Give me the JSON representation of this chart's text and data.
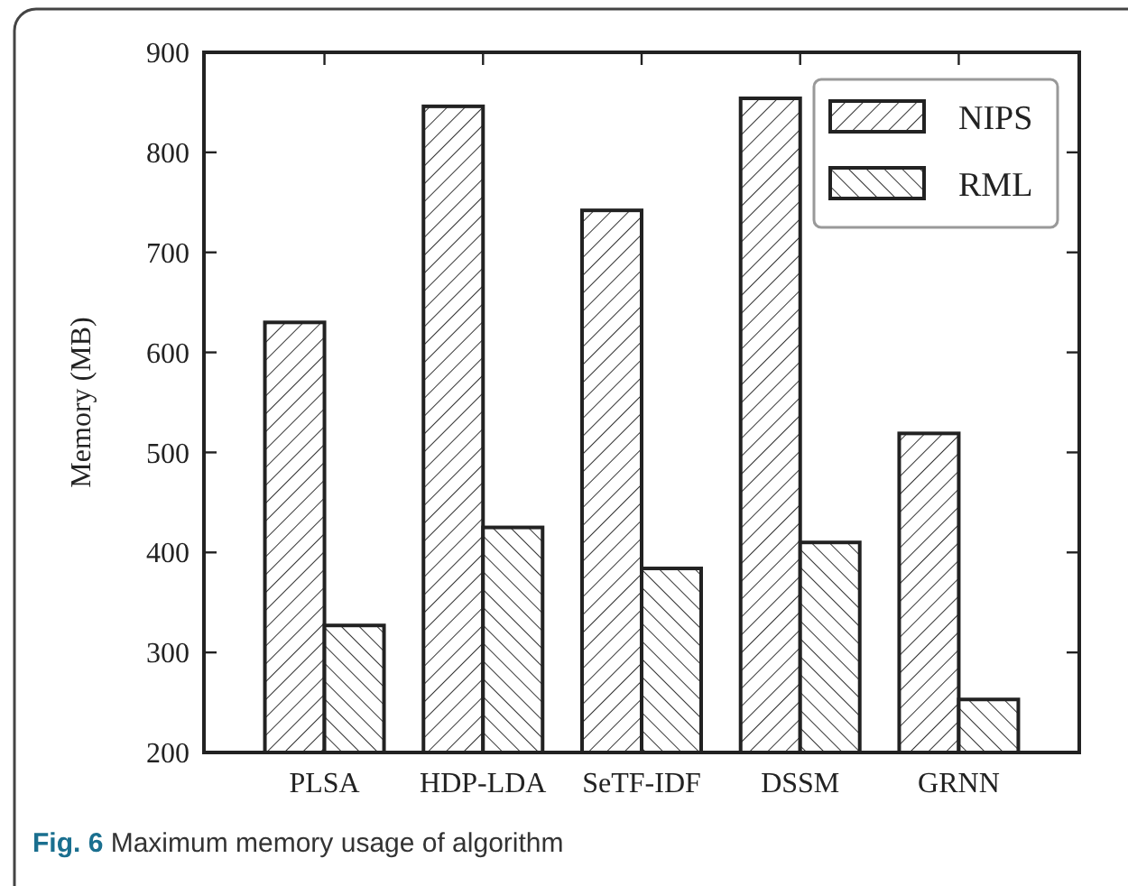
{
  "chart_data": {
    "type": "bar",
    "title": "Fig. 6 Maximum memory usage of algorithm",
    "ylabel": "Memory (MB)",
    "categories": [
      "PLSA",
      "HDP-LDA",
      "SeTF-IDF",
      "DSSM",
      "GRNN"
    ],
    "series": [
      {
        "name": "NIPS",
        "color": "#ffffff",
        "values": [
          630,
          846,
          742,
          854,
          519
        ]
      },
      {
        "name": "RML",
        "color": "#ffffff",
        "values": [
          327,
          425,
          384,
          410,
          253
        ]
      }
    ],
    "ylim": [
      200,
      900
    ],
    "yticks": [
      200,
      300,
      400,
      500,
      600,
      700,
      800,
      900
    ],
    "grid": false,
    "legend": "top right"
  }
}
